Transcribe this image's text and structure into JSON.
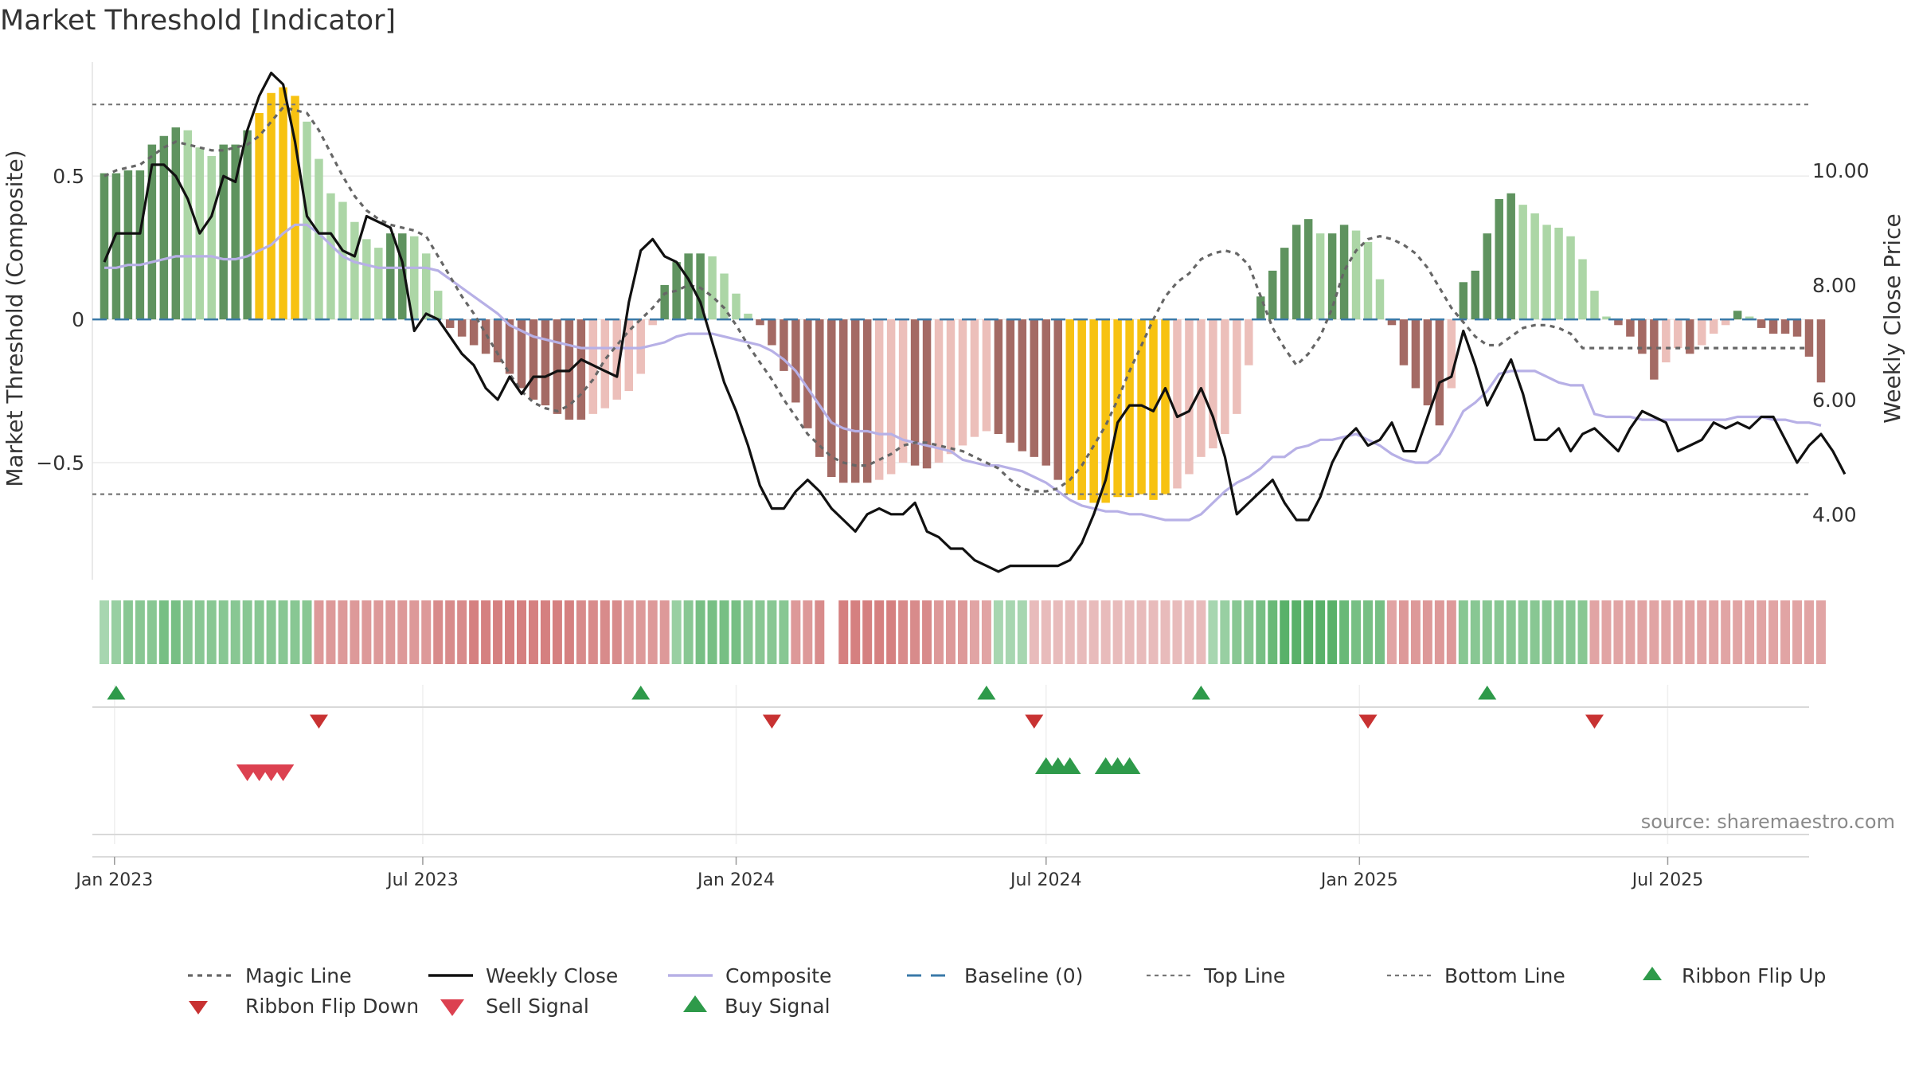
{
  "title": "Market Threshold [Indicator]",
  "source": "source: sharemaestro.com",
  "colors": {
    "bar_pos_dark": "#5f935f",
    "bar_pos_light": "#acd6a6",
    "bar_neg_dark": "#a46a64",
    "bar_neg_light": "#ecbfba",
    "bar_extreme": "#f7c211",
    "close": "#111111",
    "composite": "#b7b0e6",
    "magic": "#666666",
    "baseline": "#3a79a8",
    "threshold": "#777777",
    "ribbon_flip_up": "#2e9a4a",
    "ribbon_flip_down": "#c83232",
    "sell": "#dc4150",
    "buy": "#2e9a4a"
  },
  "chart_data": {
    "type": "bar",
    "title": "Market Threshold [Indicator]",
    "ylabel": "Market Threshold (Composite)",
    "y2label": "Weekly Close Price",
    "ylim": [
      -0.9,
      0.92
    ],
    "y2lim": [
      2.9,
      12.0
    ],
    "yticks": [
      0.5,
      0,
      -0.5
    ],
    "ytick_labels": [
      "0.5",
      "0",
      "−0.5"
    ],
    "y2ticks": [
      10,
      8,
      6,
      4
    ],
    "y2tick_labels": [
      "10.00",
      "8.00",
      "6.00",
      "4.00"
    ],
    "xlim": [
      "2022-12-19",
      "2025-09-22"
    ],
    "xticks": [
      "2023-01-01",
      "2023-07-01",
      "2024-01-01",
      "2024-07-01",
      "2025-01-01",
      "2025-07-01"
    ],
    "xtick_labels": [
      "Jan 2023",
      "Jul 2023",
      "Jan 2024",
      "Jul 2024",
      "Jan 2025",
      "Jul 2025"
    ],
    "start_date": "2022-12-26",
    "week_days": 7,
    "top_line": 0.75,
    "bottom_line": -0.61,
    "baseline": 0,
    "composite_bars": [
      0.51,
      0.51,
      0.52,
      0.52,
      0.61,
      0.64,
      0.67,
      0.66,
      0.6,
      0.57,
      0.61,
      0.61,
      0.66,
      0.72,
      0.79,
      0.81,
      0.78,
      0.69,
      0.56,
      0.44,
      0.41,
      0.34,
      0.28,
      0.25,
      0.3,
      0.3,
      0.29,
      0.23,
      0.1,
      -0.03,
      -0.06,
      -0.09,
      -0.12,
      -0.15,
      -0.19,
      -0.24,
      -0.28,
      -0.3,
      -0.33,
      -0.35,
      -0.35,
      -0.33,
      -0.31,
      -0.28,
      -0.25,
      -0.19,
      -0.02,
      0.12,
      0.2,
      0.23,
      0.23,
      0.22,
      0.16,
      0.09,
      0.02,
      -0.02,
      -0.09,
      -0.18,
      -0.29,
      -0.38,
      -0.48,
      -0.55,
      -0.57,
      -0.57,
      -0.57,
      -0.56,
      -0.54,
      -0.5,
      -0.51,
      -0.52,
      -0.5,
      -0.47,
      -0.44,
      -0.41,
      -0.39,
      -0.4,
      -0.43,
      -0.46,
      -0.48,
      -0.51,
      -0.56,
      -0.61,
      -0.63,
      -0.64,
      -0.64,
      -0.62,
      -0.62,
      -0.61,
      -0.63,
      -0.61,
      -0.59,
      -0.54,
      -0.48,
      -0.45,
      -0.4,
      -0.33,
      -0.16,
      0.08,
      0.17,
      0.25,
      0.33,
      0.35,
      0.3,
      0.3,
      0.33,
      0.31,
      0.27,
      0.14,
      -0.02,
      -0.16,
      -0.24,
      -0.3,
      -0.37,
      -0.24,
      0.13,
      0.17,
      0.3,
      0.42,
      0.44,
      0.4,
      0.37,
      0.33,
      0.32,
      0.29,
      0.21,
      0.1,
      0.01,
      -0.02,
      -0.06,
      -0.12,
      -0.21,
      -0.15,
      -0.1,
      -0.12,
      -0.09,
      -0.05,
      -0.02,
      0.03,
      0.01,
      -0.03,
      -0.05,
      -0.05,
      -0.06,
      -0.13,
      -0.22
    ],
    "composite_line": [
      0.18,
      0.18,
      0.19,
      0.19,
      0.2,
      0.21,
      0.22,
      0.22,
      0.22,
      0.22,
      0.21,
      0.21,
      0.22,
      0.24,
      0.26,
      0.3,
      0.33,
      0.33,
      0.3,
      0.26,
      0.22,
      0.2,
      0.19,
      0.18,
      0.18,
      0.18,
      0.18,
      0.18,
      0.17,
      0.14,
      0.11,
      0.08,
      0.05,
      0.02,
      -0.02,
      -0.04,
      -0.06,
      -0.07,
      -0.08,
      -0.09,
      -0.1,
      -0.1,
      -0.1,
      -0.1,
      -0.1,
      -0.1,
      -0.09,
      -0.08,
      -0.06,
      -0.05,
      -0.05,
      -0.05,
      -0.06,
      -0.07,
      -0.08,
      -0.09,
      -0.11,
      -0.14,
      -0.18,
      -0.24,
      -0.3,
      -0.36,
      -0.38,
      -0.39,
      -0.39,
      -0.4,
      -0.4,
      -0.42,
      -0.43,
      -0.44,
      -0.45,
      -0.46,
      -0.49,
      -0.5,
      -0.51,
      -0.51,
      -0.52,
      -0.53,
      -0.55,
      -0.57,
      -0.6,
      -0.63,
      -0.65,
      -0.66,
      -0.67,
      -0.67,
      -0.68,
      -0.68,
      -0.69,
      -0.7,
      -0.7,
      -0.7,
      -0.68,
      -0.64,
      -0.6,
      -0.57,
      -0.55,
      -0.52,
      -0.48,
      -0.48,
      -0.45,
      -0.44,
      -0.42,
      -0.42,
      -0.41,
      -0.4,
      -0.42,
      -0.44,
      -0.47,
      -0.49,
      -0.5,
      -0.5,
      -0.47,
      -0.4,
      -0.32,
      -0.29,
      -0.25,
      -0.19,
      -0.18,
      -0.18,
      -0.18,
      -0.2,
      -0.22,
      -0.23,
      -0.23,
      -0.33,
      -0.34,
      -0.34,
      -0.34,
      -0.35,
      -0.35,
      -0.35,
      -0.35,
      -0.35,
      -0.35,
      -0.35,
      -0.35,
      -0.34,
      -0.34,
      -0.34,
      -0.35,
      -0.35,
      -0.36,
      -0.36,
      -0.37
    ],
    "magic_line": [
      0.5,
      0.52,
      0.53,
      0.54,
      0.57,
      0.6,
      0.62,
      0.61,
      0.6,
      0.59,
      0.59,
      0.6,
      0.61,
      0.64,
      0.69,
      0.74,
      0.73,
      0.72,
      0.66,
      0.58,
      0.5,
      0.43,
      0.38,
      0.35,
      0.33,
      0.32,
      0.31,
      0.29,
      0.22,
      0.15,
      0.08,
      0.02,
      -0.05,
      -0.12,
      -0.19,
      -0.25,
      -0.29,
      -0.31,
      -0.32,
      -0.3,
      -0.26,
      -0.21,
      -0.14,
      -0.09,
      -0.04,
      0.0,
      0.04,
      0.09,
      0.1,
      0.12,
      0.11,
      0.08,
      0.04,
      -0.02,
      -0.09,
      -0.15,
      -0.21,
      -0.28,
      -0.34,
      -0.4,
      -0.44,
      -0.48,
      -0.5,
      -0.51,
      -0.51,
      -0.49,
      -0.47,
      -0.44,
      -0.43,
      -0.43,
      -0.44,
      -0.45,
      -0.46,
      -0.48,
      -0.5,
      -0.52,
      -0.56,
      -0.59,
      -0.6,
      -0.6,
      -0.59,
      -0.56,
      -0.51,
      -0.44,
      -0.37,
      -0.28,
      -0.18,
      -0.09,
      0.0,
      0.08,
      0.13,
      0.16,
      0.21,
      0.23,
      0.24,
      0.23,
      0.19,
      0.08,
      -0.03,
      -0.1,
      -0.16,
      -0.12,
      -0.06,
      0.04,
      0.17,
      0.24,
      0.28,
      0.29,
      0.28,
      0.26,
      0.23,
      0.18,
      0.11,
      0.04,
      -0.01,
      -0.06,
      -0.09,
      -0.09,
      -0.06,
      -0.03,
      -0.02,
      -0.02,
      -0.03,
      -0.05,
      -0.1,
      -0.1,
      -0.1,
      -0.1,
      -0.1,
      -0.1,
      -0.1,
      -0.1,
      -0.1,
      -0.1,
      -0.1,
      -0.1,
      -0.1,
      -0.1,
      -0.1,
      -0.1,
      -0.1,
      -0.1,
      -0.1,
      -0.1
    ],
    "weekly_close": [
      8.4,
      8.9,
      8.9,
      8.9,
      10.1,
      10.1,
      9.9,
      9.5,
      8.9,
      9.2,
      9.9,
      9.8,
      10.7,
      11.3,
      11.7,
      11.5,
      10.5,
      9.2,
      8.9,
      8.9,
      8.6,
      8.5,
      9.2,
      9.1,
      9.0,
      8.4,
      7.2,
      7.5,
      7.4,
      7.1,
      6.8,
      6.6,
      6.2,
      6.0,
      6.4,
      6.1,
      6.4,
      6.4,
      6.5,
      6.5,
      6.7,
      6.6,
      6.5,
      6.4,
      7.7,
      8.6,
      8.8,
      8.5,
      8.4,
      8.1,
      7.7,
      7.0,
      6.3,
      5.8,
      5.2,
      4.5,
      4.1,
      4.1,
      4.4,
      4.6,
      4.4,
      4.1,
      3.9,
      3.7,
      4.0,
      4.1,
      4.0,
      4.0,
      4.2,
      3.7,
      3.6,
      3.4,
      3.4,
      3.2,
      3.1,
      3.0,
      3.1,
      3.1,
      3.1,
      3.1,
      3.1,
      3.2,
      3.5,
      4.0,
      4.6,
      5.6,
      5.9,
      5.9,
      5.8,
      6.2,
      5.7,
      5.8,
      6.2,
      5.7,
      5.0,
      4.0,
      4.2,
      4.4,
      4.6,
      4.2,
      3.9,
      3.9,
      4.3,
      4.9,
      5.3,
      5.5,
      5.2,
      5.3,
      5.6,
      5.1,
      5.1,
      5.7,
      6.3,
      6.4,
      7.2,
      6.6,
      5.9,
      6.3,
      6.7,
      6.1,
      5.3,
      5.3,
      5.5,
      5.1,
      5.4,
      5.5,
      5.3,
      5.1,
      5.5,
      5.8,
      5.7,
      5.6,
      5.1,
      5.2,
      5.3,
      5.6,
      5.5,
      5.6,
      5.5,
      5.7,
      5.7,
      5.3,
      4.9,
      5.2,
      5.4,
      5.1,
      4.7
    ],
    "ribbon": [
      0.4,
      0.5,
      0.6,
      0.6,
      0.6,
      0.7,
      0.7,
      0.6,
      0.6,
      0.6,
      0.6,
      0.6,
      0.6,
      0.6,
      0.6,
      0.6,
      0.6,
      0.6,
      -0.7,
      -0.7,
      -0.7,
      -0.7,
      -0.7,
      -0.7,
      -0.7,
      -0.7,
      -0.7,
      -0.7,
      -0.8,
      -0.8,
      -0.8,
      -0.9,
      -0.9,
      -0.9,
      -0.9,
      -0.9,
      -0.9,
      -0.9,
      -0.9,
      -0.9,
      -0.8,
      -0.8,
      -0.8,
      -0.8,
      -0.7,
      -0.7,
      -0.7,
      -0.7,
      0.5,
      0.6,
      0.7,
      0.7,
      0.7,
      0.7,
      0.6,
      0.6,
      0.6,
      0.6,
      -0.7,
      -0.7,
      -0.8,
      -0.8,
      -0.9,
      -0.9,
      -0.9,
      -0.9,
      -0.9,
      -0.8,
      -0.8,
      -0.8,
      -0.7,
      -0.7,
      -0.7,
      -0.6,
      -0.6,
      0.4,
      0.4,
      0.4,
      -0.4,
      -0.4,
      -0.4,
      -0.4,
      -0.4,
      -0.4,
      -0.4,
      -0.4,
      -0.4,
      -0.4,
      -0.4,
      -0.4,
      -0.4,
      -0.4,
      -0.4,
      0.4,
      0.5,
      0.6,
      0.6,
      0.7,
      0.8,
      0.9,
      0.9,
      0.9,
      0.9,
      0.9,
      0.8,
      0.7,
      0.7,
      0.7,
      -0.6,
      -0.7,
      -0.7,
      -0.7,
      -0.7,
      -0.7,
      0.6,
      0.6,
      0.6,
      0.6,
      0.6,
      0.6,
      0.6,
      0.6,
      0.6,
      0.6,
      0.6,
      -0.6,
      -0.6,
      -0.6,
      -0.6,
      -0.6,
      -0.6,
      -0.6,
      -0.6,
      -0.6,
      -0.6,
      -0.6,
      -0.6,
      -0.6,
      -0.6,
      -0.6,
      -0.6,
      -0.6,
      -0.6,
      -0.6,
      -0.6
    ],
    "ribbon_gap": [
      61
    ],
    "ribbon_flip_up": [
      "2023-01-02",
      "2023-11-06",
      "2024-05-27",
      "2024-09-30",
      "2025-03-17"
    ],
    "ribbon_flip_down": [
      "2023-05-01",
      "2024-01-22",
      "2024-06-24",
      "2025-01-06",
      "2025-05-19"
    ],
    "sell_signals": [
      "2023-03-20",
      "2023-03-27",
      "2023-04-03",
      "2023-04-10"
    ],
    "buy_signals": [
      "2024-07-01",
      "2024-07-08",
      "2024-07-15",
      "2024-08-05",
      "2024-08-12",
      "2024-08-19"
    ],
    "legend": [
      "Magic Line",
      "Weekly Close",
      "Composite",
      "Baseline (0)",
      "Top Line",
      "Bottom Line",
      "Ribbon Flip Up",
      "Ribbon Flip Down",
      "Sell Signal",
      "Buy Signal"
    ]
  }
}
